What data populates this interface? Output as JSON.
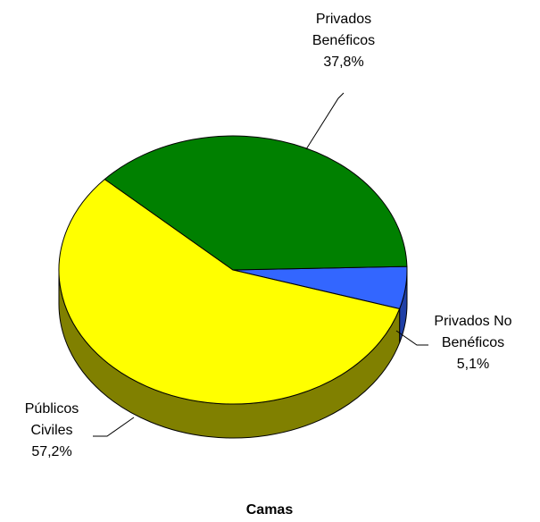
{
  "chart_data": {
    "type": "pie",
    "style": "3d",
    "title": "Camas",
    "legend": "none",
    "slices": [
      {
        "name_lines": [
          "Privados No",
          "Benéficos"
        ],
        "value": 5.1,
        "label": "5,1%",
        "color": "#3366ff",
        "side_color": "#1f3fa6"
      },
      {
        "name_lines": [
          "Públicos",
          "Civiles"
        ],
        "value": 57.2,
        "label": "57,2%",
        "color": "#ffff00",
        "side_color": "#808000"
      },
      {
        "name_lines": [
          "Privados",
          "Benéficos"
        ],
        "value": 37.8,
        "label": "37,8%",
        "color": "#008000",
        "side_color": "#004d00"
      }
    ]
  }
}
